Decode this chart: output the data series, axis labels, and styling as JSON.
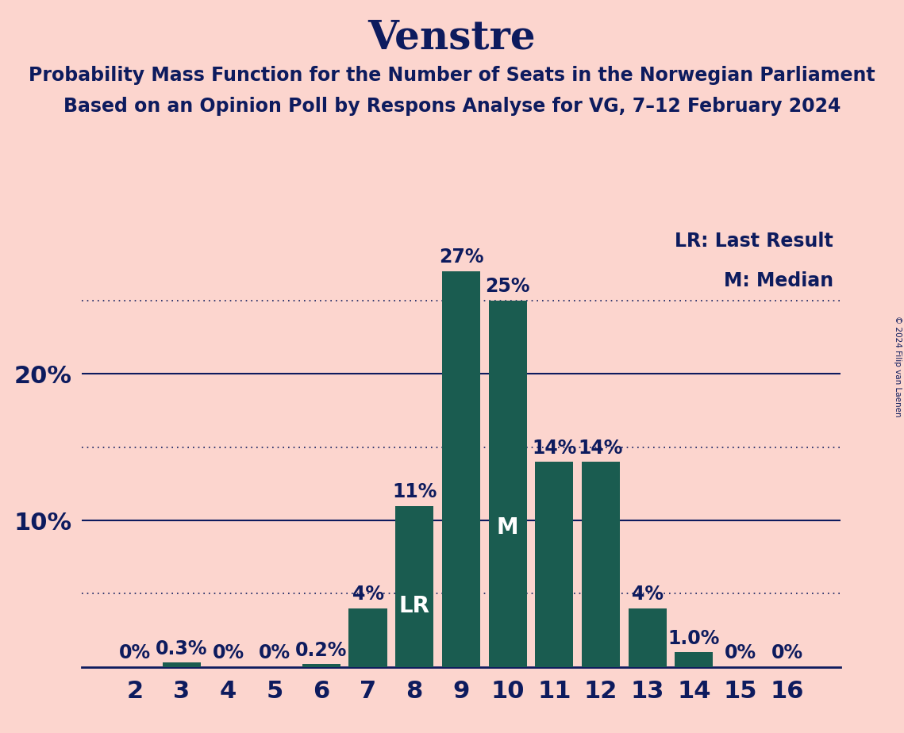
{
  "title": "Venstre",
  "subtitle1": "Probability Mass Function for the Number of Seats in the Norwegian Parliament",
  "subtitle2": "Based on an Opinion Poll by Respons Analyse for VG, 7–12 February 2024",
  "copyright": "© 2024 Filip van Laenen",
  "seats": [
    2,
    3,
    4,
    5,
    6,
    7,
    8,
    9,
    10,
    11,
    12,
    13,
    14,
    15,
    16
  ],
  "values": [
    0.0,
    0.3,
    0.0,
    0.0,
    0.2,
    4.0,
    11.0,
    27.0,
    25.0,
    14.0,
    14.0,
    4.0,
    1.0,
    0.0,
    0.0
  ],
  "labels": [
    "0%",
    "0.3%",
    "0%",
    "0%",
    "0.2%",
    "4%",
    "11%",
    "27%",
    "25%",
    "14%",
    "14%",
    "4%",
    "1.0%",
    "0%",
    "0%"
  ],
  "bar_color": "#1a5c50",
  "background_color": "#fcd5ce",
  "text_color": "#0d1b5e",
  "bar_label_color_dark": "#0d1b5e",
  "bar_label_color_light": "#ffffff",
  "last_result_seat": 8,
  "median_seat": 10,
  "dotted_line_values": [
    5.0,
    15.0,
    25.0
  ],
  "solid_line_values": [
    10.0,
    20.0
  ],
  "ylim": [
    0,
    30
  ],
  "yticks": [
    10,
    20
  ],
  "ytick_labels": [
    "10%",
    "20%"
  ],
  "legend_lr": "LR: Last Result",
  "legend_m": "M: Median",
  "title_fontsize": 36,
  "subtitle_fontsize": 17,
  "axis_label_fontsize": 22,
  "bar_label_fontsize": 17,
  "legend_fontsize": 17
}
